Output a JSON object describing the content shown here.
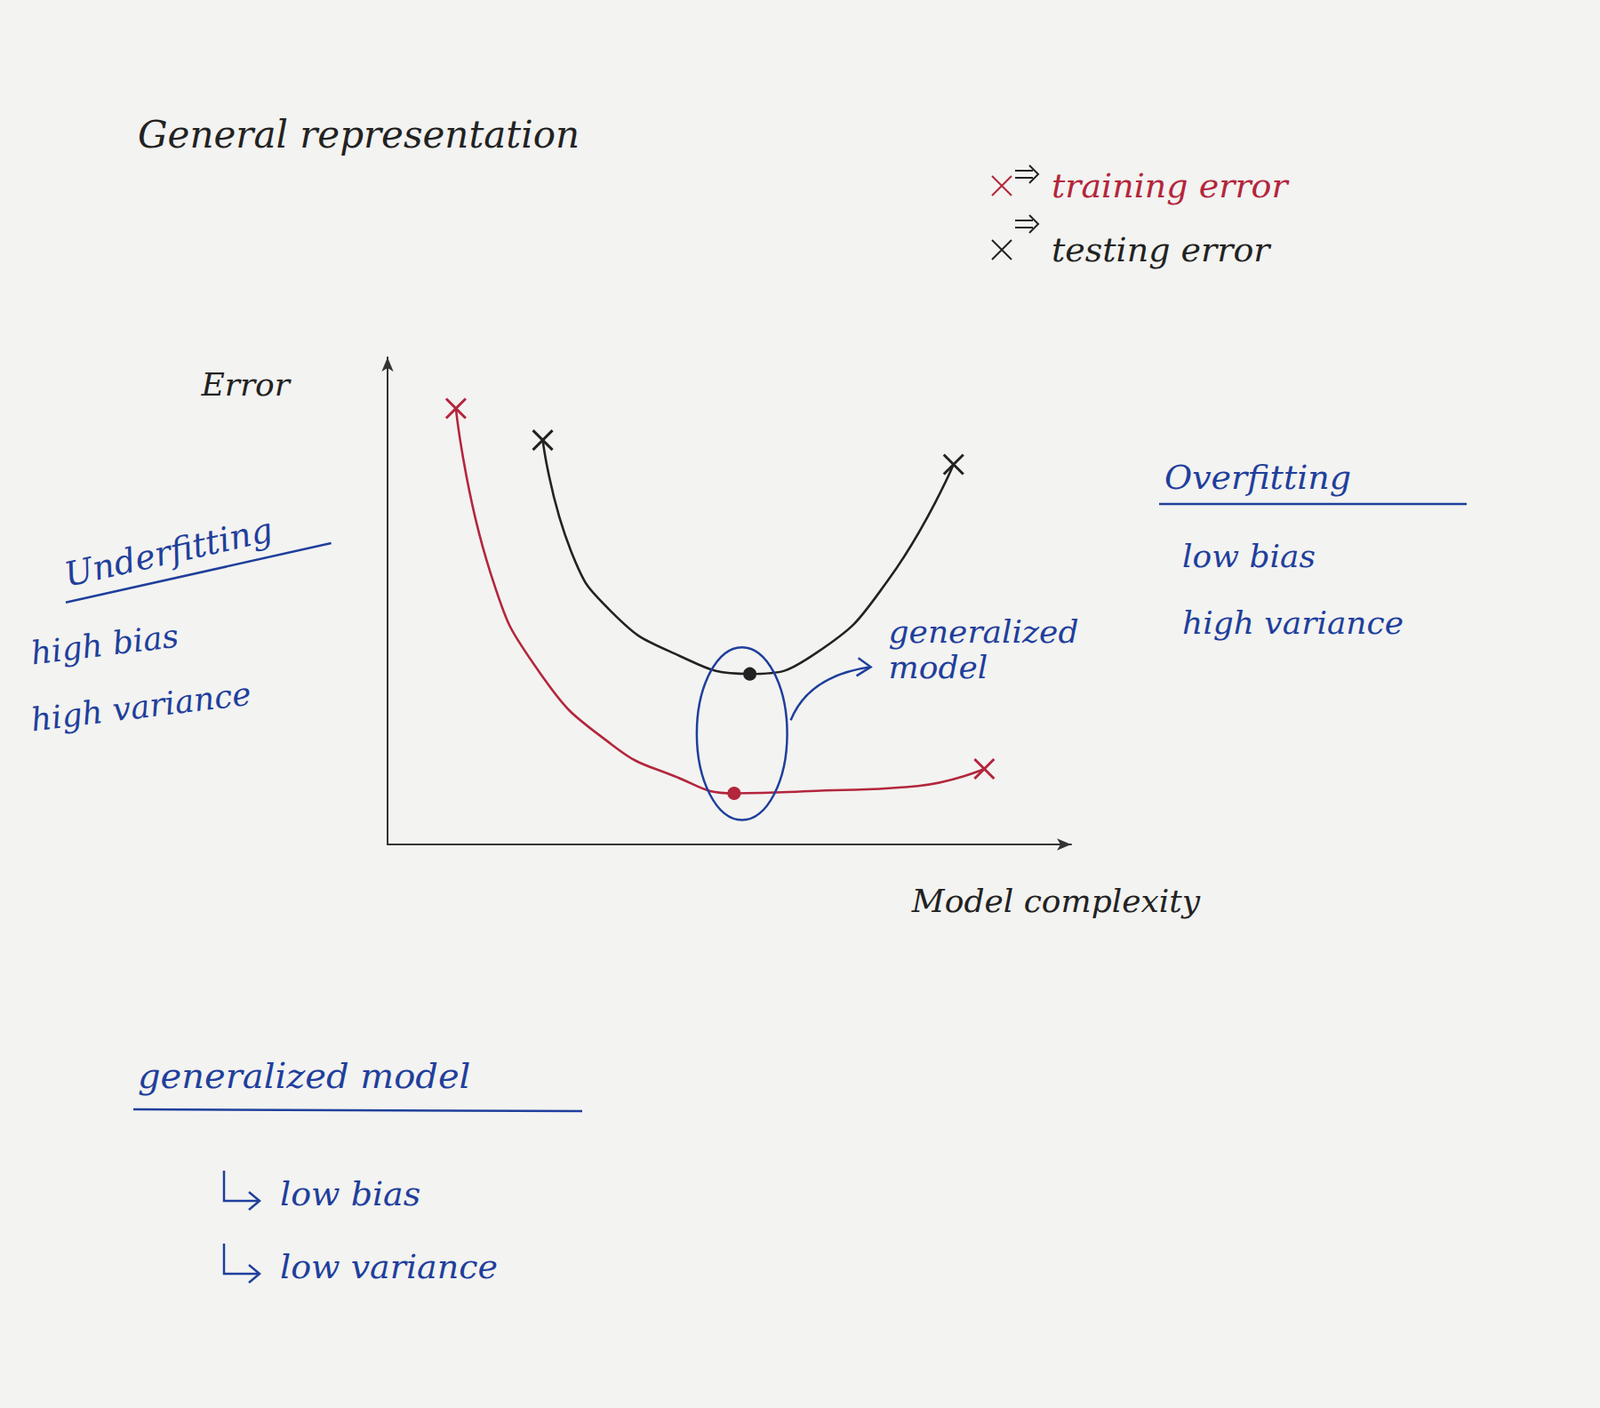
{
  "chart_data": {
    "type": "line",
    "title": "General representation",
    "x_label": "Model complexity",
    "y_label": "Error",
    "xlim": [
      0,
      10
    ],
    "ylim": [
      0,
      10
    ],
    "xticks": [],
    "yticks": [],
    "tick_labels": false,
    "grid": false,
    "legend": "upper right",
    "series": [
      {
        "name": "training error",
        "color": "#b3263c",
        "marker": "x",
        "x": [
          1.0,
          1.5,
          2.24,
          3.28,
          4.2,
          5.07,
          6.27,
          7.76,
          8.73
        ],
        "values": [
          8.95,
          5.6,
          3.5,
          2.05,
          1.4,
          1.05,
          1.1,
          1.2,
          1.55
        ]
      },
      {
        "name": "testing error",
        "color": "#222222",
        "marker": "x",
        "x": [
          2.27,
          2.69,
          3.28,
          4.18,
          5.3,
          6.27,
          7.31,
          8.28
        ],
        "values": [
          8.3,
          6.0,
          4.77,
          3.93,
          3.5,
          3.93,
          5.4,
          7.8
        ]
      }
    ],
    "annotations": [
      {
        "title": "Underfitting",
        "notes": [
          "high bias",
          "high variance"
        ]
      },
      {
        "title": "Overfitting",
        "notes": [
          "low bias",
          "high variance"
        ]
      }
    ],
    "callout": "generalized model",
    "summary": {
      "title": "generalized model",
      "notes": [
        "low bias",
        "low variance"
      ]
    }
  }
}
